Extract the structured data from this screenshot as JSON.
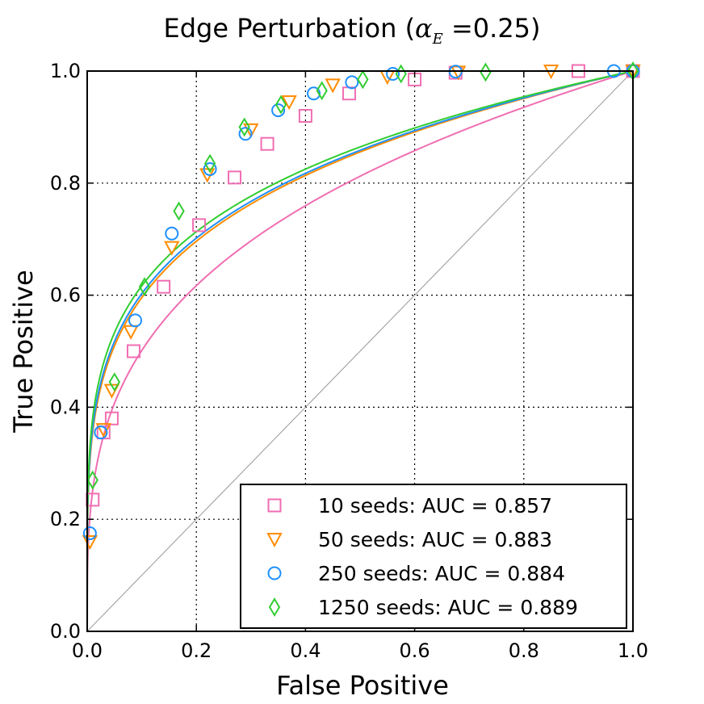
{
  "chart_data": {
    "type": "line",
    "title_main": "Edge Perturbation (",
    "title_alpha": "α",
    "title_sub": "E",
    "title_eq": " =0.25)",
    "xlabel": "False Positive",
    "ylabel": "True Positive",
    "xlim": [
      0.0,
      1.0
    ],
    "ylim": [
      0.0,
      1.0
    ],
    "xticks": [
      "0.0",
      "0.2",
      "0.4",
      "0.6",
      "0.8",
      "1.0"
    ],
    "yticks": [
      "0.0",
      "0.2",
      "0.4",
      "0.6",
      "0.8",
      "1.0"
    ],
    "grid": true,
    "diagonal_color": "#999999",
    "legend_position": "lower-right",
    "series": [
      {
        "name": "10 seeds",
        "label": "10 seeds: AUC = 0.857",
        "auc": 0.857,
        "color": "#f06eb2",
        "marker": "square",
        "curve_k": 0.3,
        "points": [
          [
            0.01,
            0.235
          ],
          [
            0.03,
            0.355
          ],
          [
            0.045,
            0.38
          ],
          [
            0.085,
            0.5
          ],
          [
            0.14,
            0.615
          ],
          [
            0.205,
            0.725
          ],
          [
            0.27,
            0.81
          ],
          [
            0.33,
            0.87
          ],
          [
            0.4,
            0.92
          ],
          [
            0.48,
            0.96
          ],
          [
            0.6,
            0.985
          ],
          [
            0.675,
            0.997
          ],
          [
            0.9,
            1.0
          ],
          [
            1.0,
            1.0
          ]
        ]
      },
      {
        "name": "50 seeds",
        "label": "50 seeds: AUC = 0.883",
        "auc": 0.883,
        "color": "#ff8c00",
        "marker": "triangle-down",
        "curve_k": 0.225,
        "points": [
          [
            0.005,
            0.16
          ],
          [
            0.03,
            0.36
          ],
          [
            0.045,
            0.43
          ],
          [
            0.08,
            0.535
          ],
          [
            0.155,
            0.685
          ],
          [
            0.22,
            0.815
          ],
          [
            0.3,
            0.895
          ],
          [
            0.37,
            0.945
          ],
          [
            0.45,
            0.975
          ],
          [
            0.55,
            0.99
          ],
          [
            0.68,
            0.998
          ],
          [
            0.85,
            1.0
          ],
          [
            1.0,
            1.0
          ]
        ]
      },
      {
        "name": "250 seeds",
        "label": "250 seeds: AUC = 0.884",
        "auc": 0.884,
        "color": "#1e90ff",
        "marker": "circle",
        "curve_k": 0.22,
        "points": [
          [
            0.005,
            0.175
          ],
          [
            0.025,
            0.355
          ],
          [
            0.088,
            0.555
          ],
          [
            0.155,
            0.71
          ],
          [
            0.225,
            0.825
          ],
          [
            0.29,
            0.888
          ],
          [
            0.35,
            0.93
          ],
          [
            0.415,
            0.96
          ],
          [
            0.485,
            0.98
          ],
          [
            0.56,
            0.995
          ],
          [
            0.675,
            0.999
          ],
          [
            0.965,
            1.0
          ],
          [
            1.0,
            1.0
          ]
        ]
      },
      {
        "name": "1250 seeds",
        "label": "1250 seeds: AUC = 0.889",
        "auc": 0.889,
        "color": "#32cd32",
        "marker": "diamond",
        "curve_k": 0.21,
        "points": [
          [
            0.01,
            0.27
          ],
          [
            0.05,
            0.445
          ],
          [
            0.105,
            0.615
          ],
          [
            0.168,
            0.75
          ],
          [
            0.225,
            0.835
          ],
          [
            0.288,
            0.9
          ],
          [
            0.355,
            0.94
          ],
          [
            0.43,
            0.965
          ],
          [
            0.505,
            0.985
          ],
          [
            0.575,
            0.995
          ],
          [
            0.73,
            0.998
          ],
          [
            1.0,
            1.0
          ]
        ]
      }
    ]
  }
}
